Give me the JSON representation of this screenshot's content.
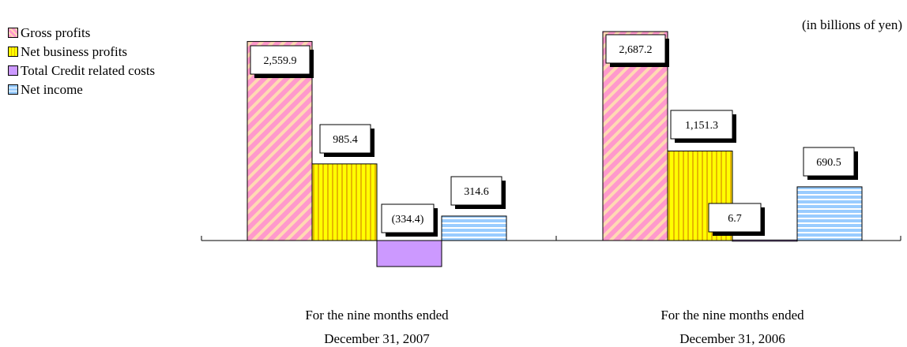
{
  "chart_data": {
    "type": "bar",
    "unit_note": "(in billions of yen)",
    "categories": [
      [
        "For the nine months ended",
        "December 31, 2007"
      ],
      [
        "For the nine months ended",
        "December 31, 2006"
      ]
    ],
    "series": [
      {
        "name": "Gross profits",
        "values": [
          2559.9,
          2687.2
        ],
        "labels": [
          "2,559.9",
          "2,687.2"
        ],
        "color": "#ff99cc",
        "pattern": "diagonal"
      },
      {
        "name": "Net business profits",
        "values": [
          985.4,
          1151.3
        ],
        "labels": [
          "985.4",
          "1,151.3"
        ],
        "color": "#ffff00",
        "pattern": "vertical"
      },
      {
        "name": "Total Credit related costs",
        "values": [
          -334.4,
          6.7
        ],
        "labels": [
          "(334.4)",
          "6.7"
        ],
        "color": "#cc99ff",
        "pattern": "solid"
      },
      {
        "name": "Net income",
        "values": [
          314.6,
          690.5
        ],
        "labels": [
          "314.6",
          "690.5"
        ],
        "color": "#99ccff",
        "pattern": "horizontal"
      }
    ],
    "ylim": [
      -400,
      2750
    ],
    "grid": false,
    "legend_position": "top-left"
  }
}
